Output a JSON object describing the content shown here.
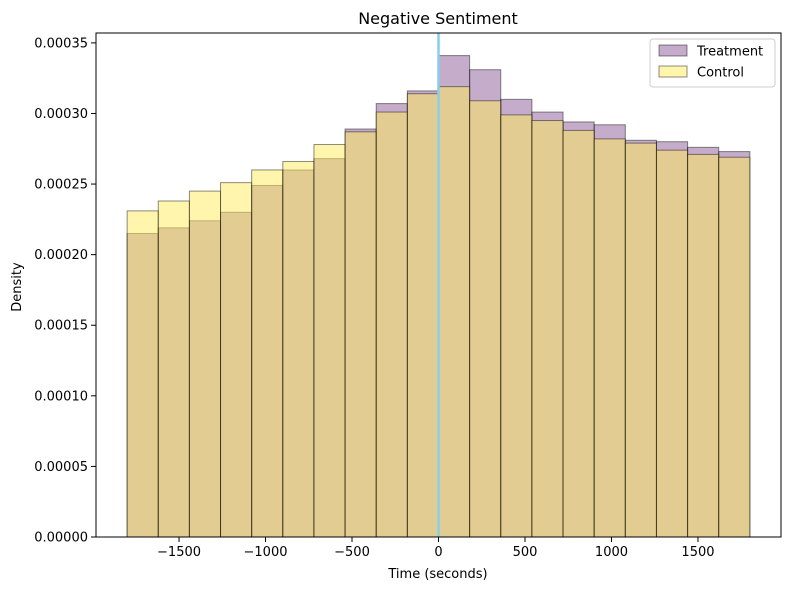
{
  "chart_data": {
    "type": "bar",
    "title": "Negative Sentiment",
    "xlabel": "Time (seconds)",
    "ylabel": "Density",
    "xlim": [
      -1980,
      1980
    ],
    "ylim": [
      0,
      0.000357
    ],
    "bin_edges": [
      -1800,
      -1620,
      -1440,
      -1260,
      -1080,
      -900,
      -720,
      -540,
      -360,
      -180,
      0,
      180,
      360,
      540,
      720,
      900,
      1080,
      1260,
      1440,
      1620,
      1800
    ],
    "xticks": [
      -1500,
      -1000,
      -500,
      0,
      500,
      1000,
      1500
    ],
    "xtick_labels": [
      "−1500",
      "−1000",
      "−500",
      "0",
      "500",
      "1000",
      "1500"
    ],
    "yticks": [
      0,
      5e-05,
      0.0001,
      0.00015,
      0.0002,
      0.00025,
      0.0003,
      0.00035
    ],
    "ytick_labels": [
      "0.00000",
      "0.00005",
      "0.00010",
      "0.00015",
      "0.00020",
      "0.00025",
      "0.00030",
      "0.00035"
    ],
    "vline_x": 0,
    "legend_position": "top-right",
    "grid": false,
    "series": [
      {
        "name": "Treatment",
        "color": "#8B5A96",
        "alpha": 0.5,
        "values": [
          0.000215,
          0.000219,
          0.000224,
          0.00023,
          0.000249,
          0.00026,
          0.000268,
          0.000289,
          0.000307,
          0.000316,
          0.000341,
          0.000331,
          0.00031,
          0.000301,
          0.000294,
          0.000292,
          0.000281,
          0.00028,
          0.000276,
          0.000273
        ]
      },
      {
        "name": "Control",
        "color": "#FFEB5A",
        "alpha": 0.5,
        "values": [
          0.000231,
          0.000238,
          0.000245,
          0.000251,
          0.00026,
          0.000266,
          0.000278,
          0.000287,
          0.000301,
          0.000314,
          0.000319,
          0.000309,
          0.000299,
          0.000295,
          0.000288,
          0.000282,
          0.000279,
          0.000274,
          0.000271,
          0.000269
        ]
      }
    ],
    "colors": {
      "vline": "#87CEEB",
      "edge": "#000000"
    }
  }
}
